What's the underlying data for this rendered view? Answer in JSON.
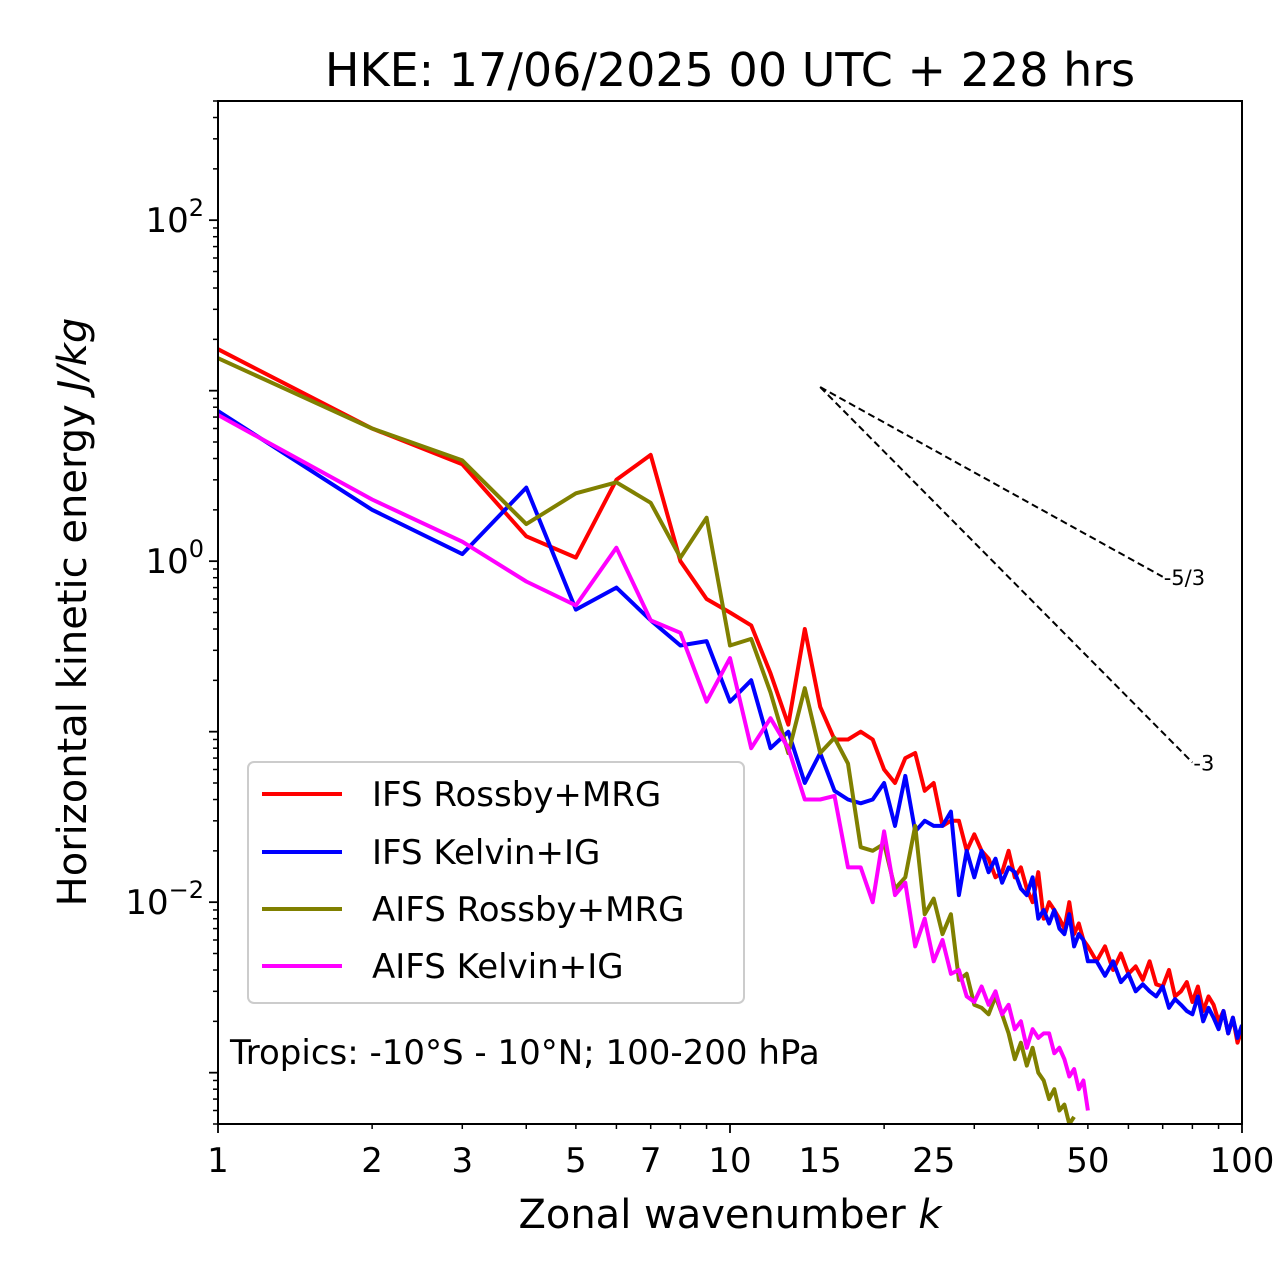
{
  "chart_data": {
    "type": "line",
    "title": "HKE: 17/06/2025 00 UTC + 228 hrs",
    "xlabel": "Zonal wavenumber ",
    "xlabel_italic": "k",
    "ylabel": "Horizontal kinetic energy ",
    "ylabel_italic": "J/kg",
    "xscale": "log",
    "yscale": "log",
    "xlim": [
      1,
      100
    ],
    "ylim": [
      0.0005,
      500
    ],
    "xticks": [
      {
        "value": 1,
        "label": "1"
      },
      {
        "value": 2,
        "label": "2"
      },
      {
        "value": 3,
        "label": "3"
      },
      {
        "value": 5,
        "label": "5"
      },
      {
        "value": 7,
        "label": "7"
      },
      {
        "value": 10,
        "label": "10"
      },
      {
        "value": 15,
        "label": "15"
      },
      {
        "value": 25,
        "label": "25"
      },
      {
        "value": 50,
        "label": "50"
      },
      {
        "value": 100,
        "label": "100"
      }
    ],
    "yticks": [
      {
        "value": 0.01,
        "base": "10",
        "exp": "−2"
      },
      {
        "value": 1,
        "base": "10",
        "exp": "0"
      },
      {
        "value": 100,
        "base": "10",
        "exp": "2"
      }
    ],
    "legend_position": "lower-left",
    "annotation": "Tropics: -10°S - 10°N; 100-200 hPa",
    "reference_lines": [
      {
        "label": "-5/3",
        "x": [
          15,
          70
        ],
        "y": [
          10.5,
          0.81
        ]
      },
      {
        "label": "-3",
        "x": [
          15,
          80
        ],
        "y": [
          10.5,
          0.066
        ]
      }
    ],
    "series": [
      {
        "name": "IFS Rossby+MRG",
        "color": "#ff0000",
        "x": [
          1,
          2,
          3,
          4,
          5,
          6,
          7,
          8,
          9,
          10,
          11,
          12,
          13,
          14,
          15,
          16,
          17,
          18,
          19,
          20,
          21,
          22,
          23,
          24,
          25,
          26,
          27,
          28,
          29,
          30,
          31,
          32,
          33,
          34,
          35,
          36,
          37,
          38,
          39,
          40,
          41,
          42,
          43,
          44,
          45,
          46,
          47,
          48,
          49,
          50,
          52,
          54,
          56,
          58,
          60,
          62,
          64,
          66,
          68,
          70,
          72,
          74,
          76,
          78,
          80,
          82,
          84,
          86,
          88,
          90,
          92,
          94,
          96,
          98,
          100
        ],
        "y": [
          17.5,
          6.0,
          3.7,
          1.4,
          1.05,
          3.0,
          4.2,
          1.0,
          0.6,
          0.5,
          0.42,
          0.22,
          0.11,
          0.4,
          0.14,
          0.09,
          0.09,
          0.1,
          0.09,
          0.06,
          0.05,
          0.07,
          0.075,
          0.045,
          0.05,
          0.028,
          0.03,
          0.03,
          0.02,
          0.025,
          0.02,
          0.018,
          0.014,
          0.015,
          0.02,
          0.014,
          0.016,
          0.012,
          0.01,
          0.015,
          0.008,
          0.01,
          0.009,
          0.008,
          0.007,
          0.01,
          0.0065,
          0.0075,
          0.006,
          0.0055,
          0.0045,
          0.0055,
          0.004,
          0.005,
          0.0038,
          0.0042,
          0.0035,
          0.0045,
          0.0033,
          0.0032,
          0.004,
          0.0028,
          0.003,
          0.0034,
          0.0026,
          0.0032,
          0.0023,
          0.0028,
          0.0025,
          0.002,
          0.0023,
          0.0017,
          0.0021,
          0.0015,
          0.0018
        ]
      },
      {
        "name": "IFS Kelvin+IG",
        "color": "#0000ff",
        "x": [
          1,
          2,
          3,
          4,
          5,
          6,
          7,
          8,
          9,
          10,
          11,
          12,
          13,
          14,
          15,
          16,
          17,
          18,
          19,
          20,
          21,
          22,
          23,
          24,
          25,
          26,
          27,
          28,
          29,
          30,
          31,
          32,
          33,
          34,
          35,
          36,
          37,
          38,
          39,
          40,
          41,
          42,
          43,
          44,
          45,
          46,
          47,
          48,
          49,
          50,
          52,
          54,
          56,
          58,
          60,
          62,
          64,
          66,
          68,
          70,
          72,
          74,
          76,
          78,
          80,
          82,
          84,
          86,
          88,
          90,
          92,
          94,
          96,
          98,
          100
        ],
        "y": [
          7.6,
          2.0,
          1.1,
          2.7,
          0.52,
          0.7,
          0.45,
          0.32,
          0.34,
          0.15,
          0.2,
          0.08,
          0.1,
          0.05,
          0.075,
          0.045,
          0.04,
          0.038,
          0.04,
          0.05,
          0.028,
          0.055,
          0.026,
          0.03,
          0.028,
          0.028,
          0.034,
          0.011,
          0.02,
          0.014,
          0.02,
          0.015,
          0.018,
          0.013,
          0.016,
          0.015,
          0.012,
          0.011,
          0.014,
          0.008,
          0.009,
          0.0075,
          0.009,
          0.007,
          0.0065,
          0.0085,
          0.0055,
          0.0065,
          0.006,
          0.0045,
          0.0045,
          0.0037,
          0.0045,
          0.0034,
          0.0038,
          0.003,
          0.0033,
          0.003,
          0.0028,
          0.0032,
          0.0024,
          0.0027,
          0.0025,
          0.0023,
          0.0022,
          0.0028,
          0.002,
          0.0024,
          0.0021,
          0.0018,
          0.0023,
          0.0017,
          0.0021,
          0.0016,
          0.0019
        ]
      },
      {
        "name": "AIFS Rossby+MRG",
        "color": "#808000",
        "x": [
          1,
          2,
          3,
          4,
          5,
          6,
          7,
          8,
          9,
          10,
          11,
          12,
          13,
          14,
          15,
          16,
          17,
          18,
          19,
          20,
          21,
          22,
          23,
          24,
          25,
          26,
          27,
          28,
          29,
          30,
          31,
          32,
          33,
          34,
          35,
          36,
          37,
          38,
          39,
          40,
          41,
          42,
          43,
          44,
          45,
          46,
          47
        ],
        "y": [
          15.5,
          6.0,
          3.9,
          1.65,
          2.5,
          2.9,
          2.2,
          1.05,
          1.8,
          0.32,
          0.35,
          0.17,
          0.075,
          0.18,
          0.075,
          0.092,
          0.065,
          0.021,
          0.02,
          0.022,
          0.012,
          0.014,
          0.028,
          0.0085,
          0.0105,
          0.0065,
          0.0085,
          0.0035,
          0.0038,
          0.0025,
          0.0024,
          0.0022,
          0.0028,
          0.0022,
          0.0017,
          0.0012,
          0.0015,
          0.0011,
          0.0014,
          0.001,
          0.0009,
          0.0007,
          0.0008,
          0.0006,
          0.00065,
          0.0005,
          0.00055
        ]
      },
      {
        "name": "AIFS Kelvin+IG",
        "color": "#ff00ff",
        "x": [
          1,
          2,
          3,
          4,
          5,
          6,
          7,
          8,
          9,
          10,
          11,
          12,
          13,
          14,
          15,
          16,
          17,
          18,
          19,
          20,
          21,
          22,
          23,
          24,
          25,
          26,
          27,
          28,
          29,
          30,
          31,
          32,
          33,
          34,
          35,
          36,
          37,
          38,
          39,
          40,
          41,
          42,
          43,
          44,
          45,
          46,
          47,
          48,
          49,
          50
        ],
        "y": [
          7.2,
          2.3,
          1.3,
          0.76,
          0.55,
          1.2,
          0.45,
          0.38,
          0.15,
          0.27,
          0.08,
          0.12,
          0.08,
          0.04,
          0.04,
          0.042,
          0.016,
          0.016,
          0.01,
          0.026,
          0.011,
          0.013,
          0.0055,
          0.008,
          0.0045,
          0.006,
          0.0038,
          0.004,
          0.0028,
          0.0026,
          0.0032,
          0.0025,
          0.003,
          0.0022,
          0.0025,
          0.0018,
          0.002,
          0.0014,
          0.0018,
          0.0016,
          0.0017,
          0.0017,
          0.0013,
          0.0014,
          0.0012,
          0.00095,
          0.00105,
          0.0008,
          0.0009,
          0.0006
        ]
      }
    ]
  }
}
